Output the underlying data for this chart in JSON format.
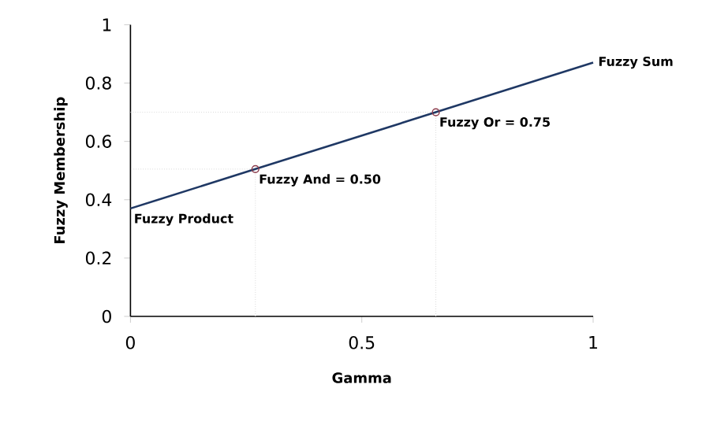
{
  "chart_data": {
    "type": "line",
    "xlabel": "Gamma",
    "ylabel": "Fuzzy Membership",
    "xlim": [
      0,
      1
    ],
    "ylim": [
      0,
      1
    ],
    "xticks": [
      0,
      0.5,
      1
    ],
    "yticks": [
      0,
      0.2,
      0.4,
      0.6,
      0.8,
      1
    ],
    "series": [
      {
        "color": "#d9d9d9",
        "line_style": "dotted",
        "x": [
          0.27,
          0.27,
          0
        ],
        "values": [
          0,
          0.505,
          0.505
        ]
      },
      {
        "color": "#d9d9d9",
        "line_style": "dotted",
        "x": [
          0.66,
          0.66,
          0
        ],
        "values": [
          0,
          0.7,
          0.7
        ]
      },
      {
        "color": "#1f3864",
        "line_style": "solid",
        "x": [
          0,
          0.27,
          0.66,
          1
        ],
        "values": [
          0.37,
          0.505,
          0.7,
          0.87
        ]
      },
      {
        "type": "scatter",
        "color": "#8b3a4a",
        "marker": "circle",
        "x": [
          0.27,
          0.66
        ],
        "values": [
          0.505,
          0.7
        ]
      }
    ],
    "annotations": [
      {
        "text": "Fuzzy Product",
        "x": 0,
        "y": 0.37
      },
      {
        "text": "Fuzzy And = 0.50",
        "x": 0.27,
        "y": 0.505
      },
      {
        "text": "Fuzzy Or = 0.75",
        "x": 0.66,
        "y": 0.7
      },
      {
        "text": "Fuzzy Sum",
        "x": 1,
        "y": 0.87
      }
    ]
  }
}
